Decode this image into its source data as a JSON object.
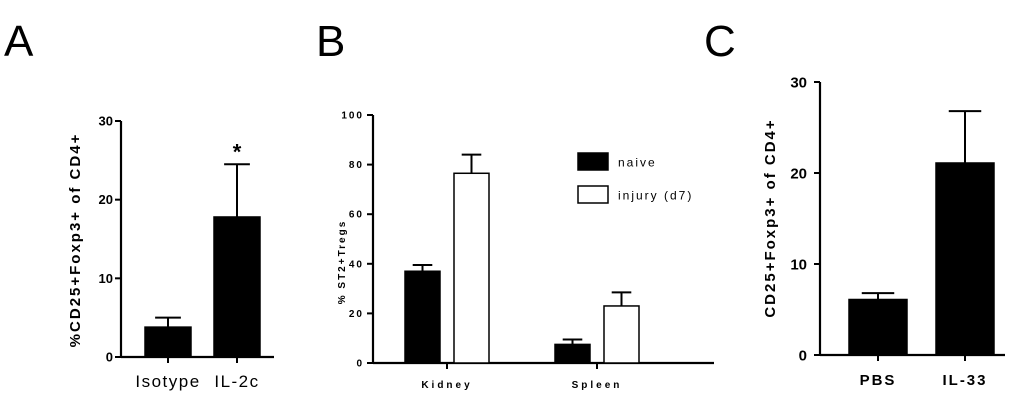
{
  "chart_data": [
    {
      "panel": "A",
      "type": "bar",
      "ylabel": "%CD25+Foxp3+ of CD4+",
      "categories": [
        "Isotype",
        "IL-2c"
      ],
      "series": [
        {
          "values": [
            3.8,
            17.8
          ],
          "errors": [
            1.2,
            6.7
          ],
          "color": "#000000"
        }
      ],
      "ylim": [
        0,
        30
      ],
      "yticks": [
        "0",
        "10",
        "20",
        "30"
      ],
      "annotations": [
        "",
        "*"
      ],
      "grid": false
    },
    {
      "panel": "B",
      "type": "bar",
      "ylabel": "% ST2+Tregs",
      "categories": [
        "Kidney",
        "Spleen"
      ],
      "series": [
        {
          "name": "naive",
          "values": [
            37,
            7.5
          ],
          "errors": [
            2.5,
            2
          ],
          "color": "#000000"
        },
        {
          "name": "injury (d7)",
          "values": [
            76.5,
            23
          ],
          "errors": [
            7.5,
            5.5
          ],
          "color": "#ffffff"
        }
      ],
      "ylim": [
        0,
        100
      ],
      "yticks": [
        "0",
        "20",
        "40",
        "60",
        "80",
        "100"
      ],
      "legend": "top-right",
      "grid": false
    },
    {
      "panel": "C",
      "type": "bar",
      "ylabel": "CD25+Foxp3+ of CD4+",
      "categories": [
        "PBS",
        "IL-33"
      ],
      "series": [
        {
          "values": [
            6.1,
            21.1
          ],
          "errors": [
            0.7,
            5.7
          ],
          "color": "#000000"
        }
      ],
      "ylim": [
        0,
        30
      ],
      "yticks": [
        "0",
        "10",
        "20",
        "30"
      ],
      "grid": false
    }
  ]
}
